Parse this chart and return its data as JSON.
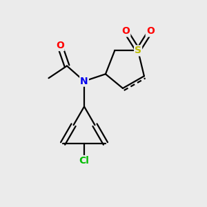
{
  "background_color": "#ebebeb",
  "atom_colors": {
    "C": "#000000",
    "N": "#0000ee",
    "O": "#ff0000",
    "S": "#bbbb00",
    "Cl": "#00bb00"
  },
  "lw": 1.6
}
